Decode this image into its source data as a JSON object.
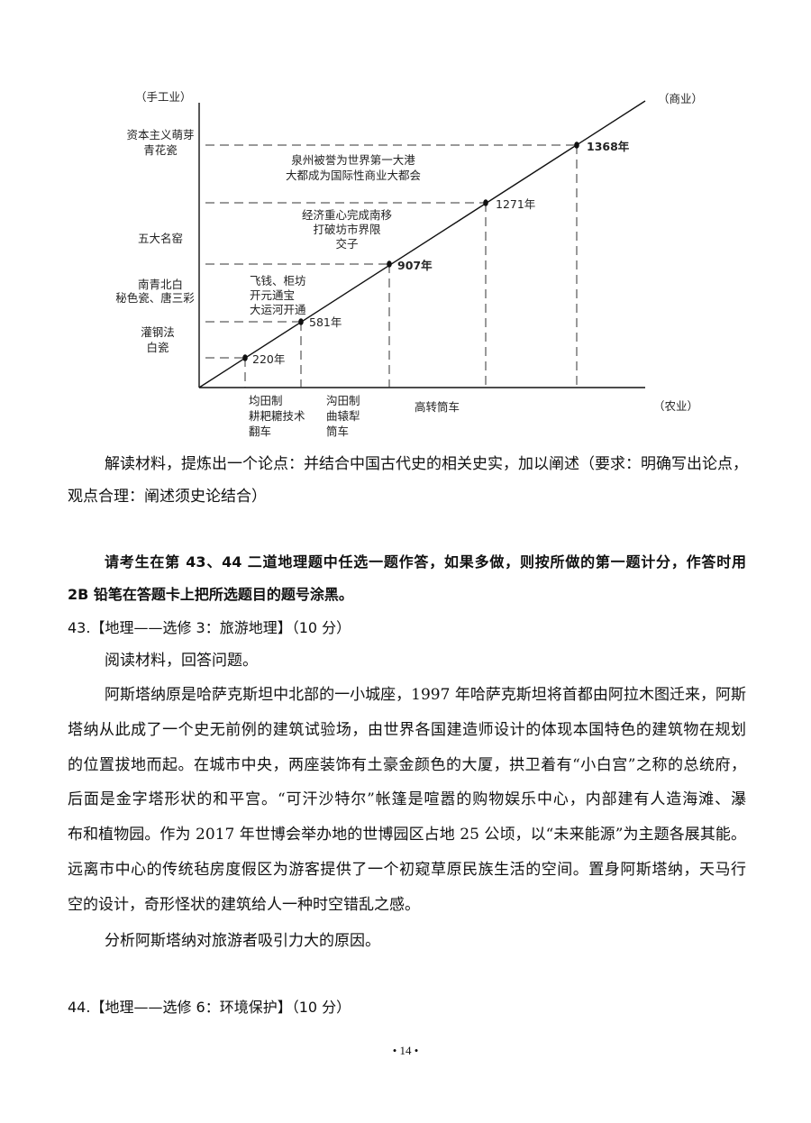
{
  "diagram": {
    "y_axis_label": "（手工业）",
    "diag_label": "（商业）",
    "x_axis_label": "（农业）",
    "points": [
      {
        "year": "220年",
        "handicraft": [
          "灌钢法",
          "白瓷"
        ],
        "commerce": [],
        "agriculture": [
          "均田制",
          "耕耙耱技术",
          "翻车"
        ]
      },
      {
        "year": "581年",
        "handicraft": [
          "南青北白",
          "秘色瓷、唐三彩"
        ],
        "commerce": [
          "飞钱、柜坊",
          "开元通宝",
          "大运河开通"
        ],
        "agriculture": [
          "沟田制",
          "曲辕犁",
          "筒车"
        ]
      },
      {
        "year": "907年",
        "handicraft": [
          "五大名窑"
        ],
        "commerce": [
          "经济重心完成南移",
          "打破坊市界限",
          "交子"
        ],
        "agriculture": [
          "高转筒车"
        ]
      },
      {
        "year": "1271年",
        "handicraft": [],
        "commerce": [
          "泉州被誉为世界第一大港",
          "大都成为国际性商业大都会"
        ],
        "agriculture": []
      },
      {
        "year": "1368年",
        "handicraft": [
          "资本主义萌芽",
          "青花瓷"
        ],
        "commerce": [],
        "agriculture": []
      }
    ]
  },
  "text": {
    "q_line1": "解读材料，提炼出一个论点：并结合中国古代史的相关史实，加以阐述（要求：明确写出论点，",
    "q_line2": "观点合理：阐述须史论结合）",
    "note_line1": "请考生在第 43、44 二道地理题中任选一题作答，如果多做，则按所做的第一题计分，作答时用",
    "note_line2": "2B 铅笔在答题卡上把所选题目的题号涂黑。",
    "q43_title": "43.【地理——选修 3：旅游地理】（10 分）",
    "q43_intro": "阅读材料，回答问题。",
    "q43_para": [
      "阿斯塔纳原是哈萨克斯坦中北部的一小城座，1997 年哈萨克斯坦将首都由阿拉木图迁来，阿斯",
      "塔纳从此成了一个史无前例的建筑试验场，由世界各国建造师设计的体现本国特色的建筑物在规划",
      "的位置拔地而起。在城市中央，两座装饰有土豪金颜色的大厦，拱卫着有“小白宫”之称的总统府，",
      "后面是金字塔形状的和平宫。“可汗沙特尔”帐篷是喧嚣的购物娱乐中心，内部建有人造海滩、瀑",
      "布和植物园。作为 2017 年世博会举办地的世博园区占地 25 公顷，以“未来能源”为主题各展其能。",
      "远离市中心的传统毡房度假区为游客提供了一个初窥草原民族生活的空间。置身阿斯塔纳，天马行",
      "空的设计，奇形怪状的建筑给人一种时空错乱之感。"
    ],
    "q43_question": "分析阿斯塔纳对旅游者吸引力大的原因。",
    "q44_title": "44.【地理——选修 6：环境保护】（10 分）",
    "page_number": "• 14 •"
  }
}
